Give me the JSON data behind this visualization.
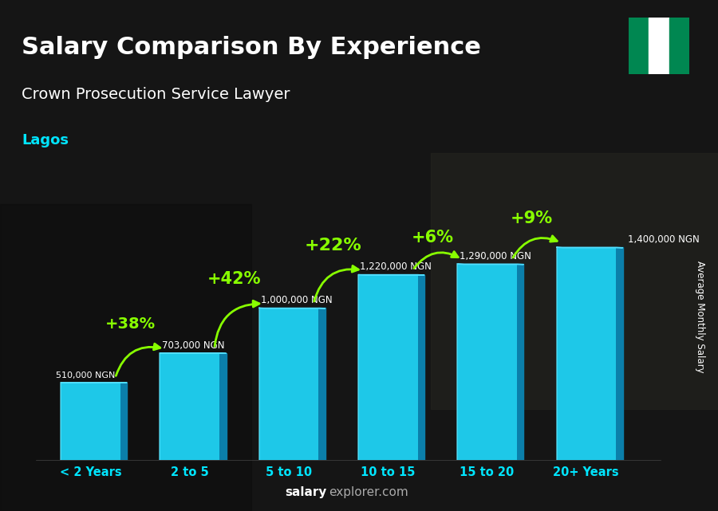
{
  "title": "Salary Comparison By Experience",
  "subtitle": "Crown Prosecution Service Lawyer",
  "location": "Lagos",
  "ylabel": "Average Monthly Salary",
  "xlabel_categories": [
    "< 2 Years",
    "2 to 5",
    "5 to 10",
    "10 to 15",
    "15 to 20",
    "20+ Years"
  ],
  "values": [
    510000,
    703000,
    1000000,
    1220000,
    1290000,
    1400000
  ],
  "value_labels": [
    "510,000 NGN",
    "703,000 NGN",
    "1,000,000 NGN",
    "1,220,000 NGN",
    "1,290,000 NGN",
    "1,400,000 NGN"
  ],
  "pct_labels": [
    "+38%",
    "+42%",
    "+22%",
    "+6%",
    "+9%"
  ],
  "bar_face_color": "#1EC8E8",
  "bar_side_color": "#0B7FAA",
  "bar_top_color": "#50DEFF",
  "bar_highlight": "#AAEEFF",
  "bg_color": "#1a1a2e",
  "title_color": "#ffffff",
  "subtitle_color": "#ffffff",
  "location_color": "#00E5FF",
  "value_label_color": "#ffffff",
  "pct_label_color": "#88FF00",
  "arrow_color": "#88FF00",
  "nigeria_flag_green": "#008751",
  "nigeria_flag_white": "#ffffff",
  "xtick_color": "#00E5FF",
  "ylim": [
    0,
    1750000
  ],
  "bar_width": 0.6,
  "bar_depth": 0.07
}
